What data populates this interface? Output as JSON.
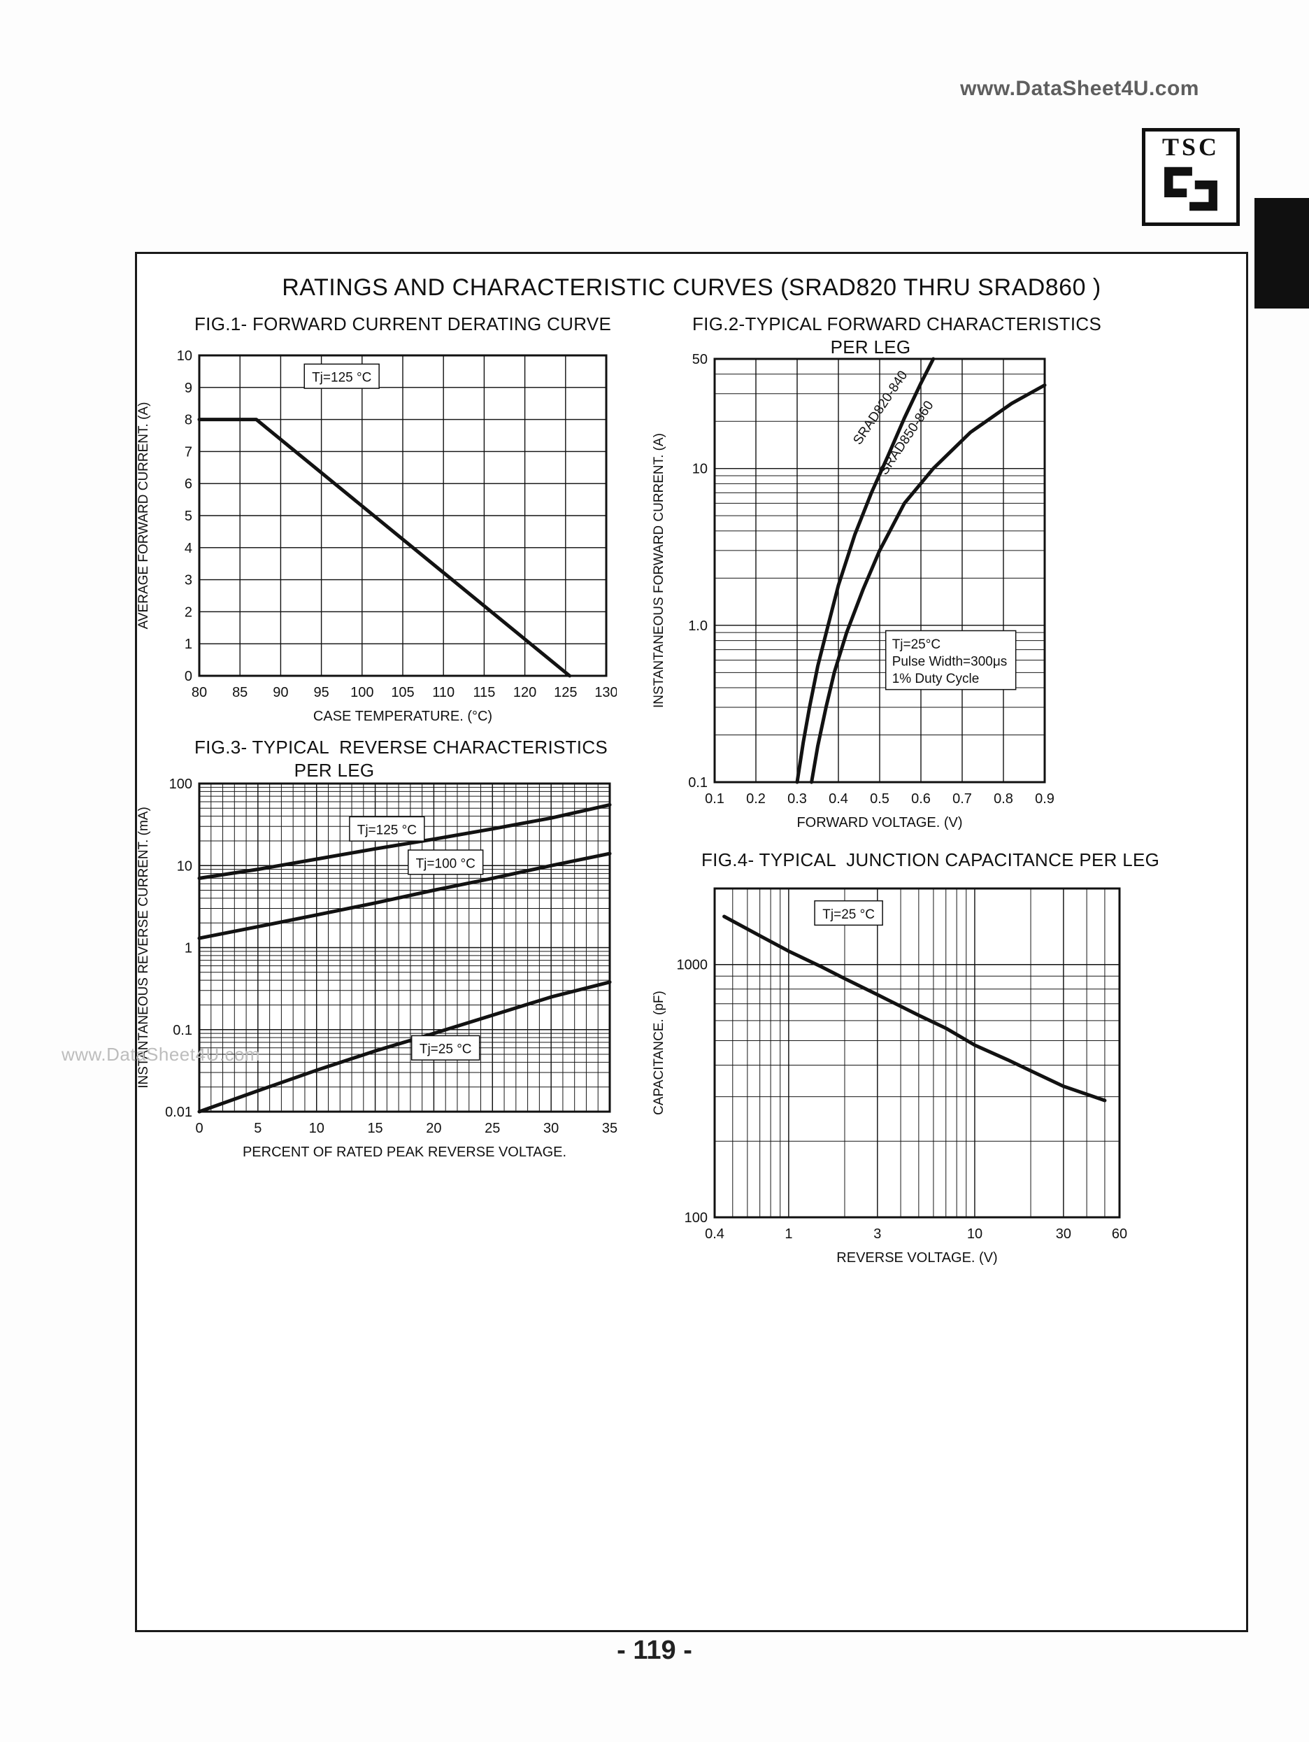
{
  "page": {
    "watermark_top": "www.DataSheet4U.com",
    "watermark_left": "www.DataSheet4U.com",
    "logo_text": "TSC",
    "page_number": "- 119 -",
    "panel_title": "RATINGS AND CHARACTERISTIC CURVES (SRAD820 THRU SRAD860 )"
  },
  "chart_data": [
    {
      "id": "fig1",
      "type": "line",
      "title": "FIG.1- FORWARD CURRENT DERATING CURVE",
      "xlabel": "CASE  TEMPERATURE. (°C)",
      "ylabel": "AVERAGE FORWARD CURRENT. (A)",
      "x_scale": "linear",
      "y_scale": "linear",
      "xlim": [
        80,
        130
      ],
      "ylim": [
        0,
        10
      ],
      "x_ticks": [
        80,
        85,
        90,
        95,
        100,
        105,
        110,
        115,
        120,
        125,
        130
      ],
      "x_tick_labels": [
        "80",
        "85",
        "90",
        "95",
        "100",
        "105",
        "110",
        "115",
        "120",
        "125",
        "130"
      ],
      "y_ticks": [
        0,
        1,
        2,
        3,
        4,
        5,
        6,
        7,
        8,
        9,
        10
      ],
      "y_tick_labels": [
        "0",
        "1",
        "2",
        "3",
        "4",
        "5",
        "6",
        "7",
        "8",
        "9",
        "10"
      ],
      "grid": true,
      "series": [
        {
          "name": "derating-line",
          "x": [
            80,
            87,
            125.5
          ],
          "y": [
            8,
            8,
            0
          ]
        }
      ],
      "annotations": [
        {
          "lines": [
            "Tj=125 °C"
          ],
          "x": 97.5,
          "y": 9.35,
          "boxed": true,
          "align": "middle"
        }
      ]
    },
    {
      "id": "fig2",
      "type": "line",
      "title": "FIG.2-TYPICAL FORWARD CHARACTERISTICS",
      "subtitle": "PER LEG",
      "xlabel": "FORWARD VOLTAGE. (V)",
      "ylabel": "INSTANTANEOUS FORWARD CURRENT. (A)",
      "x_scale": "linear",
      "y_scale": "log",
      "xlim": [
        0.1,
        0.9
      ],
      "ylim": [
        0.1,
        50
      ],
      "x_ticks": [
        0.1,
        0.2,
        0.3,
        0.4,
        0.5,
        0.6,
        0.7,
        0.8,
        0.9
      ],
      "x_tick_labels": [
        "0.1",
        "0.2",
        "0.3",
        "0.4",
        "0.5",
        "0.6",
        "0.7",
        "0.8",
        "0.9"
      ],
      "y_ticks": [
        0.1,
        1.0,
        10,
        50
      ],
      "y_tick_labels": [
        "0.1",
        "1.0",
        "10",
        "50"
      ],
      "grid": true,
      "series": [
        {
          "name": "SRAD820-840",
          "x": [
            0.3,
            0.315,
            0.33,
            0.35,
            0.375,
            0.4,
            0.44,
            0.48,
            0.52,
            0.56,
            0.6,
            0.63
          ],
          "y": [
            0.1,
            0.18,
            0.3,
            0.55,
            1.0,
            1.8,
            3.8,
            7,
            12,
            21,
            35,
            50
          ],
          "label_x": 0.452,
          "label_y": 14,
          "label_rot": -56
        },
        {
          "name": "SRAD850-860",
          "x": [
            0.335,
            0.35,
            0.37,
            0.39,
            0.42,
            0.46,
            0.5,
            0.56,
            0.63,
            0.72,
            0.82,
            0.9
          ],
          "y": [
            0.1,
            0.17,
            0.3,
            0.5,
            0.9,
            1.7,
            3.0,
            6.0,
            10,
            17,
            26,
            34
          ],
          "label_x": 0.515,
          "label_y": 9,
          "label_rot": -56
        }
      ],
      "annotations": [
        {
          "lines": [
            "Tj=25°C",
            "Pulse Width=300μs",
            "1% Duty Cycle"
          ],
          "x": 0.53,
          "y": 0.6,
          "boxed": true,
          "align": "start"
        }
      ]
    },
    {
      "id": "fig3",
      "type": "line",
      "title": "FIG.3- TYPICAL  REVERSE CHARACTERISTICS",
      "subtitle": "PER LEG",
      "xlabel": "PERCENT OF RATED PEAK REVERSE VOLTAGE.",
      "ylabel": "INSTANTANEOUS REVERSE CURRENT.  (mA)",
      "x_scale": "linear",
      "y_scale": "log",
      "xlim": [
        0,
        35
      ],
      "ylim": [
        0.01,
        100
      ],
      "x_ticks": [
        0,
        5,
        10,
        15,
        20,
        25,
        30,
        35
      ],
      "x_tick_labels": [
        "0",
        "5",
        "10",
        "15",
        "20",
        "25",
        "30",
        "35"
      ],
      "x_minor_step": 1,
      "y_ticks": [
        0.01,
        0.1,
        1,
        10,
        100
      ],
      "y_tick_labels": [
        "0.01",
        "0.1",
        "1",
        "10",
        "100"
      ],
      "grid": true,
      "series": [
        {
          "name": "Tj=125C",
          "x": [
            0,
            5,
            10,
            15,
            20,
            25,
            30,
            35
          ],
          "y": [
            7,
            9,
            12,
            16,
            21,
            28,
            38,
            55
          ]
        },
        {
          "name": "Tj=100C",
          "x": [
            0,
            5,
            10,
            15,
            20,
            25,
            30,
            35
          ],
          "y": [
            1.3,
            1.8,
            2.5,
            3.5,
            5,
            7,
            10,
            14
          ]
        },
        {
          "name": "Tj=25C",
          "x": [
            0,
            5,
            10,
            15,
            20,
            25,
            30,
            35
          ],
          "y": [
            0.01,
            0.018,
            0.032,
            0.055,
            0.09,
            0.15,
            0.25,
            0.38
          ]
        }
      ],
      "annotations": [
        {
          "lines": [
            "Tj=125 °C"
          ],
          "x": 16,
          "y": 28,
          "boxed": true,
          "align": "middle"
        },
        {
          "lines": [
            "Tj=100 °C"
          ],
          "x": 21,
          "y": 11,
          "boxed": true,
          "align": "middle"
        },
        {
          "lines": [
            "Tj=25 °C"
          ],
          "x": 21,
          "y": 0.06,
          "boxed": true,
          "align": "middle"
        }
      ]
    },
    {
      "id": "fig4",
      "type": "line",
      "title": "FIG.4- TYPICAL  JUNCTION CAPACITANCE PER LEG",
      "xlabel": "REVERSE  VOLTAGE. (V)",
      "ylabel": "CAPACITANCE. (pF)",
      "x_scale": "log",
      "y_scale": "log",
      "xlim": [
        0.4,
        60
      ],
      "ylim": [
        100,
        2000
      ],
      "x_ticks": [
        0.4,
        1,
        3,
        10,
        30,
        60
      ],
      "x_tick_labels": [
        "0.4",
        "1",
        "3",
        "10",
        "30",
        "60"
      ],
      "y_ticks": [
        100,
        1000
      ],
      "y_tick_labels": [
        "100",
        "1000"
      ],
      "grid": true,
      "series": [
        {
          "name": "junction-capacitance",
          "x": [
            0.45,
            0.7,
            1,
            1.5,
            2,
            3,
            5,
            7,
            10,
            15,
            20,
            30,
            50
          ],
          "y": [
            1550,
            1300,
            1130,
            980,
            880,
            760,
            630,
            560,
            480,
            420,
            380,
            330,
            290
          ]
        }
      ],
      "annotations": [
        {
          "lines": [
            "Tj=25 °C"
          ],
          "x": 2.1,
          "y": 1600,
          "boxed": true,
          "align": "middle"
        }
      ]
    }
  ]
}
